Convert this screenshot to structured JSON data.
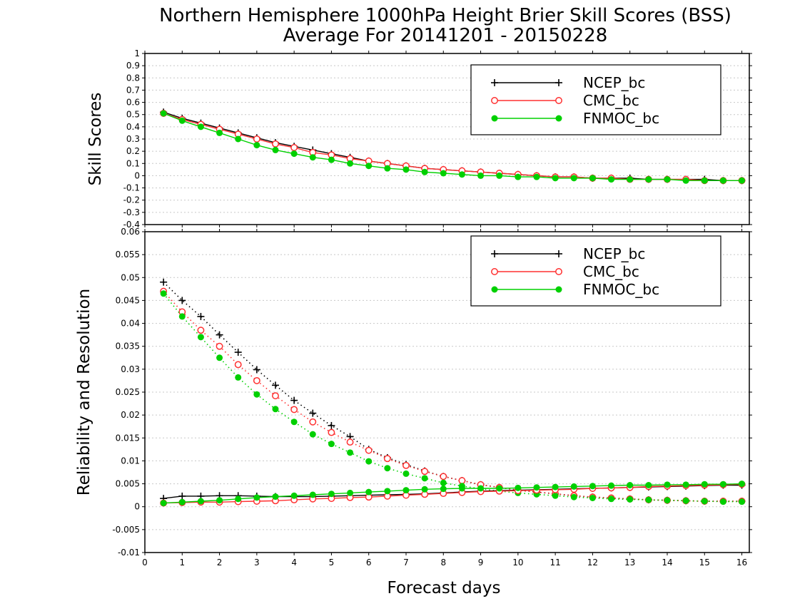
{
  "title_line1": "Northern Hemisphere 1000hPa Height Brier Skill Scores (BSS)",
  "title_line2": "Average For 20141201 - 20150228",
  "colors": {
    "NCEP_bc": "#000000",
    "CMC_bc": "#ff3030",
    "FNMOC_bc": "#00d000",
    "grid": "#c8c8c8"
  },
  "chart_data": [
    {
      "type": "line",
      "panel": "top",
      "title": "",
      "xlabel": "",
      "ylabel": "Skill Scores",
      "xlim": [
        0,
        16.2
      ],
      "ylim": [
        -0.4,
        1
      ],
      "yticks": [
        "-0.4",
        "-0.3",
        "-0.2",
        "-0.1",
        "0",
        "0.1",
        "0.2",
        "0.3",
        "0.4",
        "0.5",
        "0.6",
        "0.7",
        "0.8",
        "0.9",
        "1"
      ],
      "grid": true,
      "legend": "top-right",
      "x": [
        0.5,
        1,
        1.5,
        2,
        2.5,
        3,
        3.5,
        4,
        4.5,
        5,
        5.5,
        6,
        6.5,
        7,
        7.5,
        8,
        8.5,
        9,
        9.5,
        10,
        10.5,
        11,
        11.5,
        12,
        12.5,
        13,
        13.5,
        14,
        14.5,
        15,
        15.5,
        16
      ],
      "series": [
        {
          "name": "NCEP_bc",
          "marker": "plus",
          "style": "solid",
          "values": [
            0.52,
            0.47,
            0.43,
            0.39,
            0.35,
            0.31,
            0.27,
            0.24,
            0.21,
            0.18,
            0.15,
            0.12,
            0.1,
            0.08,
            0.06,
            0.05,
            0.04,
            0.03,
            0.02,
            0.01,
            0,
            -0.01,
            -0.01,
            -0.02,
            -0.02,
            -0.02,
            -0.03,
            -0.03,
            -0.03,
            -0.03,
            -0.04,
            -0.04
          ]
        },
        {
          "name": "CMC_bc",
          "marker": "circle-open",
          "style": "solid",
          "values": [
            0.51,
            0.46,
            0.42,
            0.38,
            0.34,
            0.3,
            0.26,
            0.23,
            0.19,
            0.17,
            0.14,
            0.12,
            0.1,
            0.08,
            0.06,
            0.05,
            0.04,
            0.03,
            0.02,
            0.01,
            0,
            -0.01,
            -0.01,
            -0.02,
            -0.02,
            -0.03,
            -0.03,
            -0.03,
            -0.03,
            -0.04,
            -0.04,
            -0.04
          ]
        },
        {
          "name": "FNMOC_bc",
          "marker": "circle-filled",
          "style": "solid",
          "values": [
            0.51,
            0.45,
            0.4,
            0.35,
            0.3,
            0.25,
            0.21,
            0.18,
            0.15,
            0.13,
            0.1,
            0.08,
            0.06,
            0.05,
            0.03,
            0.02,
            0.01,
            0,
            0,
            -0.01,
            -0.01,
            -0.02,
            -0.02,
            -0.02,
            -0.03,
            -0.03,
            -0.03,
            -0.03,
            -0.04,
            -0.04,
            -0.04,
            -0.04
          ]
        }
      ]
    },
    {
      "type": "line",
      "panel": "bottom",
      "title": "",
      "xlabel": "Forecast days",
      "ylabel": "Reliability and Resolution",
      "xlim": [
        0,
        16.2
      ],
      "ylim": [
        -0.01,
        0.06
      ],
      "yticks": [
        "-0.01",
        "-0.005",
        "0",
        "0.005",
        "0.01",
        "0.015",
        "0.02",
        "0.025",
        "0.03",
        "0.035",
        "0.04",
        "0.045",
        "0.05",
        "0.055",
        "0.06"
      ],
      "xticks": [
        "0",
        "1",
        "2",
        "3",
        "4",
        "5",
        "6",
        "7",
        "8",
        "9",
        "10",
        "11",
        "12",
        "13",
        "14",
        "15",
        "16"
      ],
      "grid": true,
      "legend": "top-right",
      "x": [
        0.5,
        1,
        1.5,
        2,
        2.5,
        3,
        3.5,
        4,
        4.5,
        5,
        5.5,
        6,
        6.5,
        7,
        7.5,
        8,
        8.5,
        9,
        9.5,
        10,
        10.5,
        11,
        11.5,
        12,
        12.5,
        13,
        13.5,
        14,
        14.5,
        15,
        15.5,
        16
      ],
      "series": [
        {
          "name": "NCEP_bc",
          "marker": "plus",
          "style": "dotted",
          "quantity": "Resolution",
          "values": [
            0.049,
            0.045,
            0.0415,
            0.0375,
            0.0337,
            0.0299,
            0.0265,
            0.0232,
            0.0204,
            0.0177,
            0.0153,
            0.0125,
            0.0107,
            0.0092,
            0.0078,
            0.0066,
            0.0057,
            0.0048,
            0.0042,
            0.0036,
            0.0032,
            0.0028,
            0.0024,
            0.0021,
            0.0019,
            0.0017,
            0.0015,
            0.0014,
            0.0013,
            0.0012,
            0.0012,
            0.0012
          ]
        },
        {
          "name": "CMC_bc",
          "marker": "circle-open",
          "style": "dotted",
          "quantity": "Resolution",
          "values": [
            0.047,
            0.0425,
            0.0385,
            0.035,
            0.031,
            0.0275,
            0.0242,
            0.0212,
            0.0185,
            0.0162,
            0.0141,
            0.0123,
            0.0105,
            0.009,
            0.0077,
            0.0066,
            0.0057,
            0.0048,
            0.0042,
            0.0036,
            0.0032,
            0.0028,
            0.0024,
            0.0021,
            0.0019,
            0.0017,
            0.0015,
            0.0014,
            0.0013,
            0.0012,
            0.0012,
            0.0012
          ]
        },
        {
          "name": "FNMOC_bc",
          "marker": "circle-filled",
          "style": "dotted",
          "quantity": "Resolution",
          "values": [
            0.0465,
            0.0415,
            0.037,
            0.0325,
            0.0282,
            0.0245,
            0.0213,
            0.0185,
            0.0158,
            0.0137,
            0.0118,
            0.0099,
            0.0084,
            0.0072,
            0.0062,
            0.0052,
            0.0045,
            0.0039,
            0.0034,
            0.003,
            0.0027,
            0.0024,
            0.0021,
            0.0019,
            0.0017,
            0.0016,
            0.0015,
            0.0014,
            0.0013,
            0.0012,
            0.0011,
            0.0011
          ]
        },
        {
          "name": "NCEP_bc",
          "marker": "plus",
          "style": "solid",
          "quantity": "Reliability",
          "values": [
            0.0018,
            0.0023,
            0.0023,
            0.0024,
            0.0024,
            0.0023,
            0.0022,
            0.0022,
            0.0022,
            0.0023,
            0.0024,
            0.0025,
            0.0026,
            0.0027,
            0.0028,
            0.003,
            0.0032,
            0.0034,
            0.0035,
            0.0036,
            0.0037,
            0.0038,
            0.0039,
            0.004,
            0.0041,
            0.0042,
            0.0043,
            0.0044,
            0.0045,
            0.0046,
            0.0047,
            0.0047
          ]
        },
        {
          "name": "CMC_bc",
          "marker": "circle-open",
          "style": "solid",
          "quantity": "Reliability",
          "values": [
            0.0008,
            0.0009,
            0.001,
            0.001,
            0.0011,
            0.0012,
            0.0013,
            0.0015,
            0.0017,
            0.0018,
            0.002,
            0.0021,
            0.0023,
            0.0025,
            0.0027,
            0.0029,
            0.0031,
            0.0033,
            0.0034,
            0.0035,
            0.0036,
            0.0037,
            0.0038,
            0.004,
            0.0041,
            0.0042,
            0.0044,
            0.0045,
            0.0046,
            0.0047,
            0.0048,
            0.0049
          ]
        },
        {
          "name": "FNMOC_bc",
          "marker": "circle-filled",
          "style": "solid",
          "quantity": "Reliability",
          "values": [
            0.0008,
            0.001,
            0.0012,
            0.0014,
            0.0017,
            0.002,
            0.0022,
            0.0024,
            0.0026,
            0.0028,
            0.003,
            0.0032,
            0.0034,
            0.0036,
            0.0038,
            0.0039,
            0.004,
            0.004,
            0.004,
            0.0041,
            0.0042,
            0.0043,
            0.0044,
            0.0045,
            0.0046,
            0.0047,
            0.0047,
            0.0048,
            0.0048,
            0.0049,
            0.0049,
            0.005
          ]
        }
      ]
    }
  ]
}
